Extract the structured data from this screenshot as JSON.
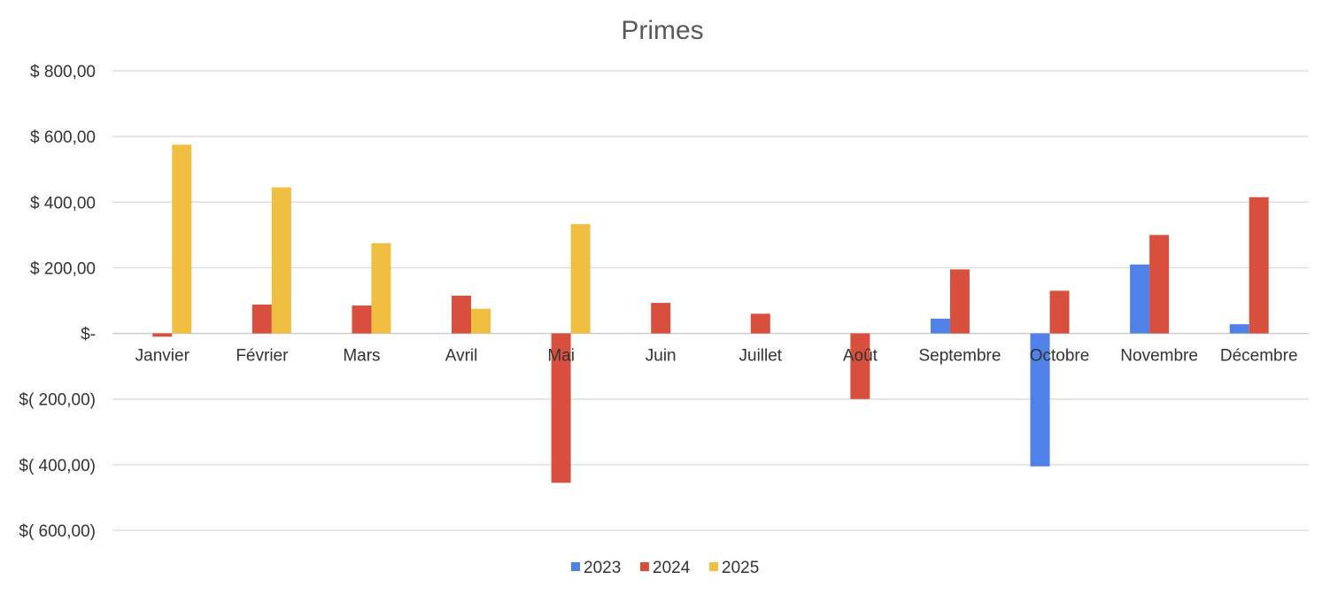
{
  "chart_data": {
    "type": "bar",
    "title": "Primes",
    "categories": [
      "Janvier",
      "Février",
      "Mars",
      "Avril",
      "Mai",
      "Juin",
      "Juillet",
      "Août",
      "Septembre",
      "Octobre",
      "Novembre",
      "Décembre"
    ],
    "series": [
      {
        "name": "2023",
        "color": "#4f81e8",
        "values": [
          0,
          0,
          0,
          0,
          0,
          0,
          0,
          0,
          45,
          -405,
          210,
          28
        ]
      },
      {
        "name": "2024",
        "color": "#d94f3d",
        "values": [
          -10,
          88,
          85,
          115,
          -455,
          93,
          60,
          -200,
          195,
          130,
          300,
          415
        ]
      },
      {
        "name": "2025",
        "color": "#f0bf41",
        "values": [
          575,
          445,
          275,
          75,
          333,
          0,
          0,
          0,
          0,
          0,
          0,
          0
        ]
      }
    ],
    "ylim": [
      -600,
      800
    ],
    "yticks": [
      800,
      600,
      400,
      200,
      0,
      -200,
      -400,
      -600
    ],
    "ytick_labels": [
      "$ 800,00",
      "$ 600,00",
      "$ 400,00",
      "$ 200,00",
      "$-",
      "$( 200,00)",
      "$( 400,00)",
      "$( 600,00)"
    ],
    "xlabel": "",
    "ylabel": "",
    "grid": true,
    "legend_position": "bottom"
  }
}
